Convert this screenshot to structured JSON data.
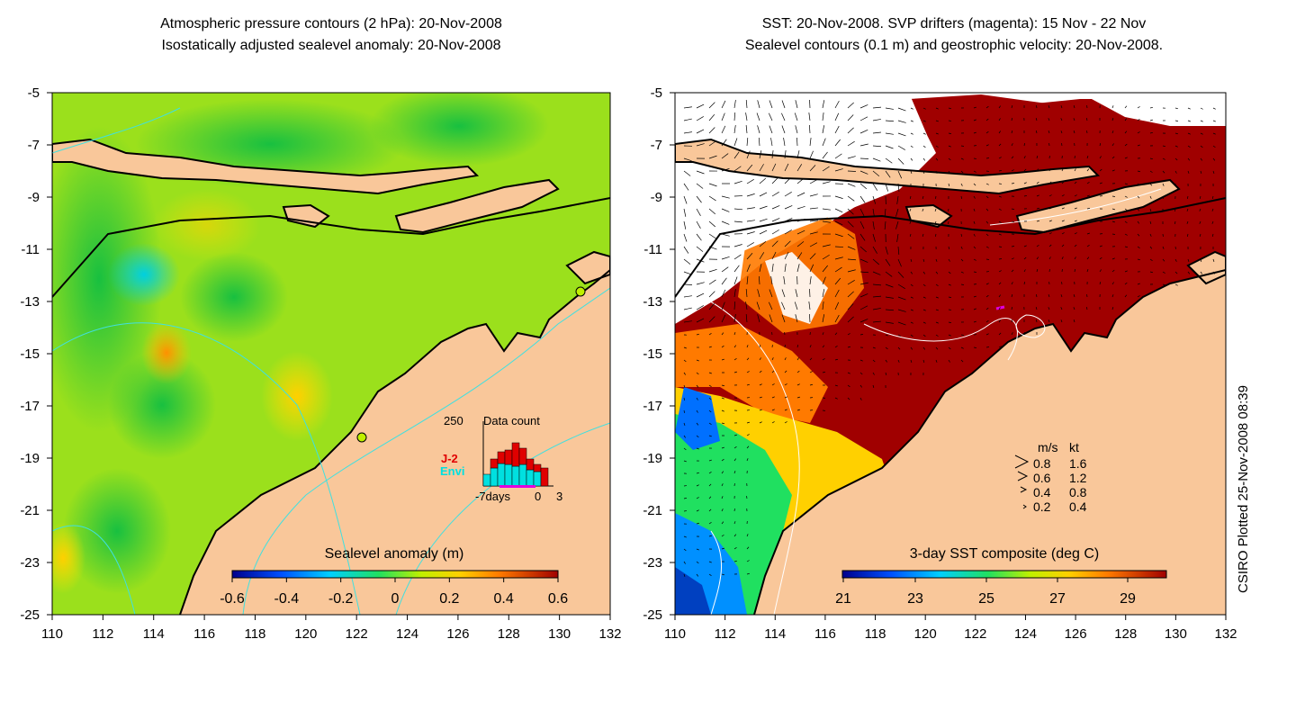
{
  "left_panel": {
    "title_line1": "Atmospheric pressure contours (2 hPa): 20-Nov-2008",
    "title_line2": "Isostatically adjusted sealevel anomaly: 20-Nov-2008",
    "colorbar_label": "Sealevel anomaly (m)",
    "colorbar_ticks": [
      "-0.6",
      "-0.4",
      "-0.2",
      "0",
      "0.2",
      "0.4",
      "0.6"
    ],
    "inset": {
      "y_label": "250",
      "title": "Data count",
      "x_labels": [
        "-7days",
        "0",
        "3"
      ],
      "legend_j2": "J-2",
      "legend_envi": "Envi",
      "legend_j2_color": "#e00000",
      "legend_envi_color": "#00e0e0"
    }
  },
  "right_panel": {
    "title_line1": "SST: 20-Nov-2008. SVP drifters (magenta): 15 Nov - 22 Nov",
    "title_line2": "Sealevel contours (0.1 m) and geostrophic velocity: 20-Nov-2008.",
    "colorbar_label": "3-day SST composite (deg C)",
    "colorbar_ticks": [
      "21",
      "23",
      "25",
      "27",
      "29"
    ],
    "speed_legend": {
      "header_ms": "m/s",
      "header_kt": "kt",
      "rows": [
        {
          "ms": "0.8",
          "kt": "1.6"
        },
        {
          "ms": "0.6",
          "kt": "1.2"
        },
        {
          "ms": "0.4",
          "kt": "0.8"
        },
        {
          "ms": "0.2",
          "kt": "0.4"
        }
      ]
    }
  },
  "axes": {
    "x_ticks": [
      "110",
      "112",
      "114",
      "116",
      "118",
      "120",
      "122",
      "124",
      "126",
      "128",
      "130",
      "132"
    ],
    "y_ticks": [
      "-5",
      "-7",
      "-9",
      "-11",
      "-13",
      "-15",
      "-17",
      "-19",
      "-21",
      "-23",
      "-25"
    ]
  },
  "credit": "CSIRO Plotted 25-Nov-2008 08:39",
  "colors": {
    "land": "#f9c79a",
    "ocean_left": "#9be01c",
    "ocean_right_hot": "#a00000",
    "contour": "#40e0e0"
  }
}
